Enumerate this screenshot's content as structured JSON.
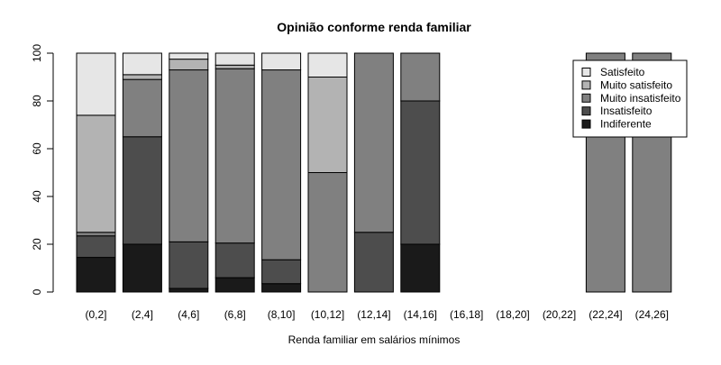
{
  "chart_data": {
    "type": "bar",
    "stacked": true,
    "percent": true,
    "title": "Opinião conforme renda familiar",
    "xlabel": "Renda familiar em salários mínimos",
    "ylabel": "",
    "ylim": [
      0,
      100
    ],
    "yticks": [
      "0",
      "20",
      "40",
      "60",
      "80",
      "100"
    ],
    "legend_position": "top-right",
    "categories": [
      "(0,2]",
      "(2,4]",
      "(4,6]",
      "(6,8]",
      "(8,10]",
      "(10,12]",
      "(12,14]",
      "(14,16]",
      "(16,18]",
      "(18,20]",
      "(20,22]",
      "(22,24]",
      "(24,26]"
    ],
    "series": [
      {
        "name": "Indiferente",
        "color": "#1a1a1a",
        "values": [
          14.5,
          20.0,
          1.5,
          6.0,
          3.5,
          0,
          0,
          20.0,
          null,
          null,
          null,
          0,
          0
        ]
      },
      {
        "name": "Insatisfeito",
        "color": "#4d4d4d",
        "values": [
          9.0,
          45.0,
          19.5,
          14.5,
          10.0,
          0,
          25.0,
          60.0,
          null,
          null,
          null,
          0,
          0
        ]
      },
      {
        "name": "Muito insatisfeito",
        "color": "#808080",
        "values": [
          1.5,
          24.0,
          72.0,
          73.0,
          79.5,
          50.0,
          75.0,
          20.0,
          null,
          null,
          null,
          100,
          100
        ]
      },
      {
        "name": "Muito satisfeito",
        "color": "#b3b3b3",
        "values": [
          49.0,
          2.0,
          4.5,
          1.5,
          0,
          40.0,
          0,
          0,
          null,
          null,
          null,
          0,
          0
        ]
      },
      {
        "name": "Satisfeito",
        "color": "#e6e6e6",
        "values": [
          26.0,
          9.0,
          2.5,
          5.0,
          7.0,
          10.0,
          0,
          0,
          null,
          null,
          null,
          0,
          0
        ]
      }
    ],
    "legend_order": [
      "Satisfeito",
      "Muito satisfeito",
      "Muito insatisfeito",
      "Insatisfeito",
      "Indiferente"
    ]
  }
}
